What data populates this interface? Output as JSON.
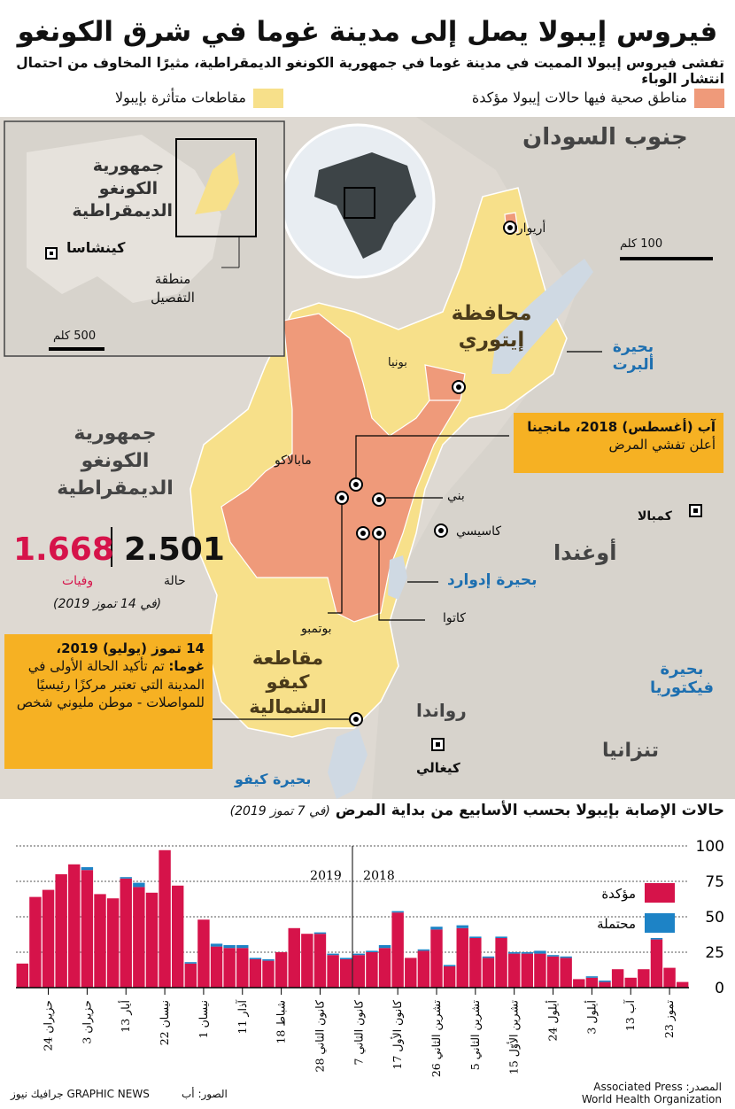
{
  "title": "فيروس إيبولا يصل إلى مدينة غوما في شرق الكونغو",
  "subtitle": "تفشى فيروس إيبولا المميت في مدينة غوما في جمهورية الكونغو الديمقراطية، مثيرًا المخاوف من احتمال انتشار الوباء",
  "legend": {
    "confirmed_zones": {
      "label": "مناطق صحية فيها حالات إيبولا مؤكدة",
      "color": "#ef9a7a"
    },
    "affected_territories": {
      "label": "مقاطعات متأثرة بإيبولا",
      "color": "#f7e08a"
    }
  },
  "map": {
    "country_label": "جمهورية الكونغو الديمقراطية",
    "province_ituri": "محافظة إيتوري",
    "province_north_kivu": "مقاطعة كيفو الشمالية",
    "south_sudan": "جنوب السودان",
    "uganda": "أوغندا",
    "rwanda": "رواندا",
    "tanzania": "تنزانيا",
    "lake_albert": "بحيرة ألبرت",
    "lake_edward": "بحيرة إدوارد",
    "lake_victoria": "بحيرة فيكتوريا",
    "lake_kivu": "بحيرة كيفو",
    "scale_label": "100 كلم",
    "cities": {
      "aru": "أريوارا",
      "bunia": "بونيا",
      "mambasa": "مابالاكو",
      "beni": "بني",
      "kasese": "كاسيسي",
      "katwa": "كاتوا",
      "butembo": "بوتمبو",
      "kampala": "كمبالا",
      "kigali": "كيغالي"
    }
  },
  "inset": {
    "country_label": "جمهورية الكونغو الديمقراطية",
    "capital": "كينشاسا",
    "detail_area": "منطقة التفصيل",
    "scale_label": "500 كلم"
  },
  "stats": {
    "cases_value": "2.501",
    "cases_label": "حالة",
    "deaths_value": "1.668",
    "deaths_label": "وفيات",
    "date": "(في 14 تموز 2019)",
    "deaths_color": "#d6134a"
  },
  "callouts": {
    "mangina_title": "آب (أغسطس) 2018، مانجينا",
    "mangina_text": "أعلن تفشي المرض",
    "goma_title": "14 تموز (يوليو) 2019،",
    "goma_bold": "غوما:",
    "goma_text": "تم تأكيد الحالة الأولى في المدينة التي تعتبر مركزًا رئيسيًا للمواصلات - موطن مليوني شخص"
  },
  "chart_title": "حالات الإصابة بإيبولا بحسب الأسابيع من بداية المرض",
  "chart_title_note": "(في 7 تموز 2019)",
  "chart_data": {
    "type": "bar",
    "order": "right-to-left (oldest week at right)",
    "ylim": [
      0,
      100
    ],
    "yticks": [
      "0",
      "25",
      "50",
      "75",
      "100"
    ],
    "year_labels": [
      "2019",
      "2018"
    ],
    "series": [
      {
        "name": "مؤكدة",
        "color": "#d6134a",
        "values": [
          4,
          14,
          34,
          13,
          7,
          13,
          4,
          7,
          6,
          21,
          22,
          24,
          24,
          24,
          35,
          21,
          35,
          42,
          15,
          41,
          26,
          21,
          53,
          28,
          25,
          23,
          20,
          23,
          38,
          38,
          42,
          25,
          19,
          20,
          28,
          28,
          29,
          48,
          17,
          72,
          97,
          67,
          71,
          77,
          63,
          66,
          83,
          87,
          80,
          69,
          64,
          17
        ]
      },
      {
        "name": "محتملة",
        "color": "#1d83c6",
        "values": [
          0,
          0,
          1,
          0,
          0,
          0,
          1,
          1,
          0,
          1,
          1,
          2,
          1,
          1,
          1,
          1,
          1,
          2,
          1,
          2,
          1,
          0,
          1,
          2,
          1,
          1,
          1,
          1,
          1,
          0,
          0,
          0,
          1,
          1,
          2,
          2,
          2,
          0,
          1,
          0,
          0,
          0,
          3,
          1,
          0,
          0,
          2,
          0,
          0,
          0,
          0,
          0
        ]
      }
    ],
    "x_ticks": [
      "23 تموز",
      "13 آب",
      "3 أيلول",
      "24 أيلول",
      "15 تشرين الأوّل",
      "5 تشرين الثاني",
      "26 تشرين الثاني",
      "17 كانون الأول",
      "7 كانون الثاني",
      "28 كانون الثاني",
      "18 شباط",
      "11 آذار",
      "1 نيسان",
      "22 نيسان",
      "13 أيار",
      "3 حزيران",
      "24 حزيران"
    ]
  },
  "footer": {
    "source_label": "المصدر: Associated Press",
    "source_line2": "World Health Organization",
    "photo": "الصور: أب",
    "credit": "GRAPHIC NEWS جرافيك نيوز"
  }
}
